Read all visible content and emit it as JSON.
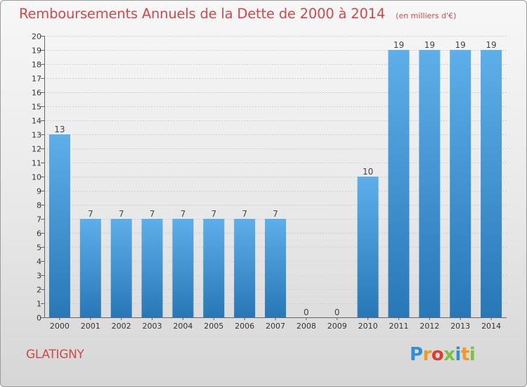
{
  "header": {
    "title": "Remboursements Annuels de la Dette de 2000 à 2014",
    "unit": "(en milliers d'€)"
  },
  "footer": {
    "commune": "GLATIGNY",
    "logo": [
      "P",
      "r",
      "o",
      "x",
      "i",
      "t",
      "i"
    ]
  },
  "colors": {
    "bar_light": "#5eaee9",
    "bar_dark": "#2878b8",
    "title": "#d04a4a"
  },
  "chart_data": {
    "type": "bar",
    "categories": [
      "2000",
      "2001",
      "2002",
      "2003",
      "2004",
      "2005",
      "2006",
      "2007",
      "2008",
      "2009",
      "2010",
      "2011",
      "2012",
      "2013",
      "2014"
    ],
    "values": [
      13,
      7,
      7,
      7,
      7,
      7,
      7,
      7,
      0,
      0,
      10,
      19,
      19,
      19,
      19
    ],
    "data_labels": [
      "13",
      "7",
      "7",
      "7",
      "7",
      "7",
      "7",
      "7",
      "0",
      "0",
      "10",
      "19",
      "19",
      "19",
      "19"
    ],
    "ylim": [
      0,
      20
    ],
    "yticks": [
      "0",
      "1",
      "2",
      "3",
      "4",
      "5",
      "6",
      "7",
      "8",
      "9",
      "10",
      "11",
      "12",
      "13",
      "14",
      "15",
      "16",
      "17",
      "18",
      "19",
      "20"
    ],
    "grid": "horizontal",
    "legend": "none"
  }
}
